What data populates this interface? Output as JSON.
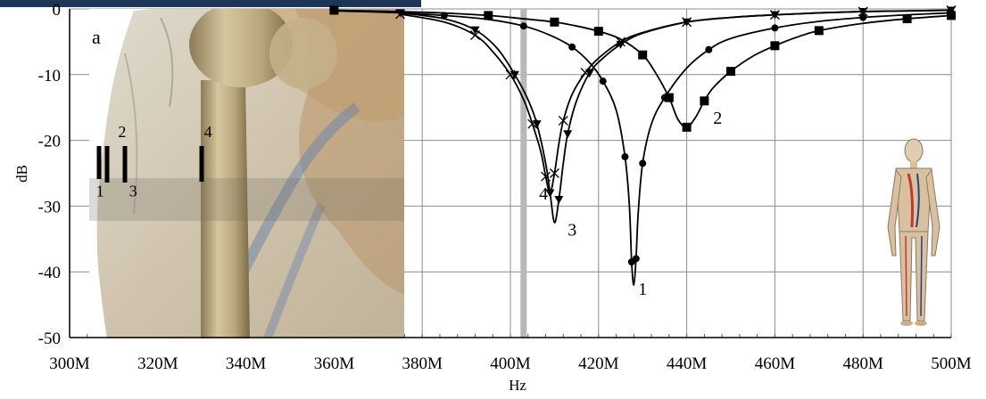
{
  "chart_data": {
    "type": "line",
    "xlabel": "Hz",
    "ylabel": "dB",
    "xlim": [
      300,
      500
    ],
    "ylim": [
      -50,
      0
    ],
    "x_unit": "M",
    "x_ticks": [
      "300M",
      "320M",
      "340M",
      "360M",
      "380M",
      "400M",
      "420M",
      "440M",
      "460M",
      "480M",
      "500M"
    ],
    "y_ticks": [
      "0",
      "-10",
      "-20",
      "-30",
      "-40",
      "-50"
    ],
    "grid": true,
    "panel_label": "a",
    "highlight_band_x": 403,
    "series": [
      {
        "name": "1",
        "marker": "circle",
        "color": "#000000",
        "x": [
          360,
          375,
          385,
          395,
          403,
          409,
          414,
          418,
          421,
          424,
          426,
          427,
          427.5,
          428,
          428.5,
          429,
          430,
          432,
          435,
          440,
          445,
          450,
          460,
          470,
          480,
          490,
          500
        ],
        "y": [
          -0.3,
          -0.6,
          -1.0,
          -1.6,
          -2.6,
          -4.0,
          -5.8,
          -8.2,
          -11.0,
          -15.4,
          -22.5,
          -30.0,
          -38.5,
          -42.0,
          -38.0,
          -31.0,
          -23.5,
          -17.5,
          -13.5,
          -9.0,
          -6.2,
          -4.5,
          -2.9,
          -1.9,
          -1.3,
          -0.9,
          -0.6
        ]
      },
      {
        "name": "2",
        "marker": "square",
        "color": "#000000",
        "x": [
          360,
          380,
          395,
          403,
          410,
          415,
          420,
          425,
          430,
          433,
          436,
          438,
          440,
          442,
          444,
          446,
          450,
          455,
          460,
          465,
          470,
          480,
          490,
          500
        ],
        "y": [
          -0.2,
          -0.5,
          -1.0,
          -1.5,
          -2.0,
          -2.6,
          -3.4,
          -4.6,
          -7.0,
          -9.8,
          -13.5,
          -16.8,
          -18.0,
          -16.5,
          -14.0,
          -12.0,
          -9.5,
          -7.2,
          -5.6,
          -4.3,
          -3.3,
          -2.2,
          -1.5,
          -1.0
        ]
      },
      {
        "name": "3",
        "marker": "triangle-down",
        "color": "#000000",
        "x": [
          375,
          385,
          392,
          397,
          401,
          404,
          406,
          408,
          409,
          410,
          411,
          412,
          413,
          415,
          418,
          421,
          425,
          430,
          440,
          450,
          460,
          470,
          480,
          490,
          500
        ],
        "y": [
          -0.6,
          -1.5,
          -3.2,
          -6.0,
          -10.0,
          -13.8,
          -17.5,
          -23.5,
          -28.0,
          -32.5,
          -29.0,
          -23.5,
          -19.0,
          -14.0,
          -9.7,
          -7.5,
          -5.4,
          -3.7,
          -2.0,
          -1.3,
          -0.9,
          -0.6,
          -0.4,
          -0.3,
          -0.2
        ]
      },
      {
        "name": "4",
        "marker": "cross",
        "color": "#000000",
        "x": [
          375,
          385,
          392,
          396,
          400,
          403,
          405,
          407,
          408,
          409,
          410,
          411,
          412,
          414,
          417,
          420,
          425,
          430,
          440,
          450,
          460,
          470,
          480,
          490,
          500
        ],
        "y": [
          -0.8,
          -2.0,
          -4.0,
          -6.5,
          -10.0,
          -13.8,
          -17.5,
          -22.0,
          -25.5,
          -28.0,
          -25.0,
          -20.5,
          -17.0,
          -13.0,
          -9.7,
          -7.5,
          -5.0,
          -3.6,
          -2.0,
          -1.3,
          -0.9,
          -0.6,
          -0.4,
          -0.3,
          -0.2
        ]
      }
    ],
    "curve_labels": [
      {
        "text": "1",
        "x": 429,
        "y": -43.5
      },
      {
        "text": "2",
        "x": 446,
        "y": -17.5
      },
      {
        "text": "3",
        "x": 413,
        "y": -34.5
      },
      {
        "text": "4",
        "x": 406.5,
        "y": -29.0
      }
    ],
    "inset_markers": [
      {
        "text": "1",
        "x": 306,
        "y": -28.5
      },
      {
        "text": "2",
        "x": 311,
        "y": -19.5
      },
      {
        "text": "3",
        "x": 313.5,
        "y": -28.5
      },
      {
        "text": "4",
        "x": 330.5,
        "y": -19.5
      }
    ]
  }
}
